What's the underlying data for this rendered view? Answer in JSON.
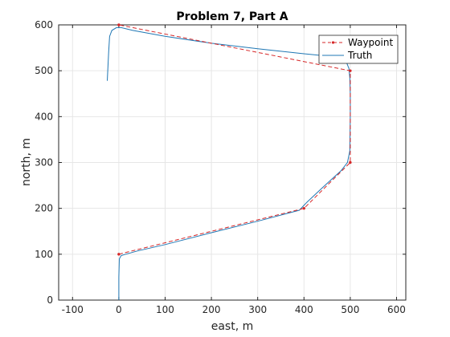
{
  "chart_data": {
    "type": "line",
    "title": "Problem 7, Part A",
    "xlabel": "east, m",
    "ylabel": "north, m",
    "xlim": [
      -130,
      620
    ],
    "ylim": [
      0,
      600
    ],
    "xticks": [
      -100,
      0,
      100,
      200,
      300,
      400,
      500,
      600
    ],
    "yticks": [
      0,
      100,
      200,
      300,
      400,
      500,
      600
    ],
    "grid": true,
    "legend": "top-right",
    "series": [
      {
        "name": "Waypoint",
        "color": "#d62728",
        "style": "dashed-with-markers",
        "x": [
          0,
          400,
          500,
          500,
          0
        ],
        "y": [
          100,
          200,
          300,
          500,
          600
        ]
      },
      {
        "name": "Truth",
        "color": "#1f77b4",
        "style": "solid",
        "x": [
          0,
          0,
          1,
          5,
          15,
          40,
          100,
          200,
          300,
          390,
          405,
          440,
          480,
          494,
          499,
          500,
          500,
          499,
          497,
          490,
          470,
          400,
          300,
          200,
          100,
          30,
          5,
          -5,
          -15,
          -20,
          -22,
          -25
        ],
        "y": [
          0,
          50,
          90,
          97,
          100,
          107,
          121,
          147,
          172,
          196,
          212,
          245,
          282,
          300,
          325,
          400,
          450,
          485,
          505,
          523,
          530,
          537,
          548,
          560,
          575,
          588,
          594,
          594,
          588,
          575,
          540,
          478
        ]
      }
    ]
  }
}
